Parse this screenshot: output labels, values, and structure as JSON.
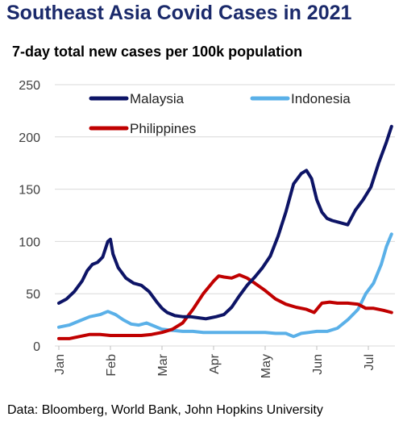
{
  "chart_data": {
    "type": "line",
    "title": "Southeast Asia Covid Cases in 2021",
    "subtitle": "7-day total new cases per 100k population",
    "source": "Data: Bloomberg, World Bank, John Hopkins University",
    "xlabel": "",
    "ylabel": "",
    "ylim": [
      0,
      250
    ],
    "yticks": [
      "0",
      "50",
      "100",
      "150",
      "200",
      "250"
    ],
    "xticks": [
      "Jan",
      "Feb",
      "Mar",
      "Apr",
      "May",
      "Jun",
      "Jul"
    ],
    "grid": true,
    "legend_position": "top",
    "series": [
      {
        "name": "Malaysia",
        "color": "#0d1466",
        "x": [
          0,
          0.15,
          0.3,
          0.45,
          0.55,
          0.65,
          0.75,
          0.85,
          0.95,
          1.0,
          1.05,
          1.15,
          1.3,
          1.45,
          1.6,
          1.75,
          1.9,
          2.0,
          2.1,
          2.25,
          2.4,
          2.55,
          2.7,
          2.85,
          2.95,
          3.05,
          3.2,
          3.35,
          3.5,
          3.65,
          3.8,
          3.95,
          4.1,
          4.25,
          4.4,
          4.55,
          4.7,
          4.8,
          4.9,
          5.0,
          5.1,
          5.2,
          5.3,
          5.45,
          5.6,
          5.75,
          5.9,
          6.05,
          6.2,
          6.35,
          6.45
        ],
        "values": [
          41,
          45,
          52,
          62,
          72,
          78,
          80,
          85,
          100,
          102,
          88,
          75,
          65,
          60,
          58,
          52,
          42,
          36,
          32,
          29,
          28,
          28,
          27,
          26,
          27,
          28,
          30,
          37,
          48,
          58,
          66,
          75,
          86,
          105,
          128,
          155,
          165,
          168,
          160,
          140,
          128,
          122,
          120,
          118,
          116,
          130,
          140,
          152,
          175,
          195,
          210
        ]
      },
      {
        "name": "Indonesia",
        "color": "#5ab0e8",
        "x": [
          0,
          0.2,
          0.4,
          0.6,
          0.8,
          0.95,
          1.1,
          1.25,
          1.4,
          1.55,
          1.7,
          1.85,
          2.0,
          2.2,
          2.4,
          2.6,
          2.8,
          3.0,
          3.2,
          3.4,
          3.6,
          3.8,
          4.0,
          4.2,
          4.4,
          4.55,
          4.7,
          4.85,
          5.0,
          5.2,
          5.4,
          5.6,
          5.8,
          5.95,
          6.1,
          6.25,
          6.35,
          6.45
        ],
        "values": [
          18,
          20,
          24,
          28,
          30,
          33,
          30,
          25,
          21,
          20,
          22,
          19,
          16,
          15,
          14,
          14,
          13,
          13,
          13,
          13,
          13,
          13,
          13,
          12,
          12,
          9,
          12,
          13,
          14,
          14,
          17,
          25,
          35,
          50,
          60,
          78,
          95,
          107
        ]
      },
      {
        "name": "Philippines",
        "color": "#c00000",
        "x": [
          0,
          0.2,
          0.4,
          0.6,
          0.8,
          1.0,
          1.2,
          1.4,
          1.6,
          1.8,
          2.0,
          2.2,
          2.4,
          2.6,
          2.8,
          3.0,
          3.1,
          3.2,
          3.35,
          3.5,
          3.65,
          3.8,
          4.0,
          4.2,
          4.4,
          4.6,
          4.8,
          4.95,
          5.0,
          5.1,
          5.25,
          5.4,
          5.6,
          5.8,
          5.95,
          6.1,
          6.3,
          6.45
        ],
        "values": [
          7,
          7,
          9,
          11,
          11,
          10,
          10,
          10,
          10,
          11,
          13,
          16,
          22,
          35,
          50,
          62,
          67,
          66,
          65,
          68,
          65,
          60,
          53,
          45,
          40,
          37,
          35,
          32,
          35,
          41,
          42,
          41,
          41,
          40,
          36,
          36,
          34,
          32
        ]
      }
    ]
  }
}
